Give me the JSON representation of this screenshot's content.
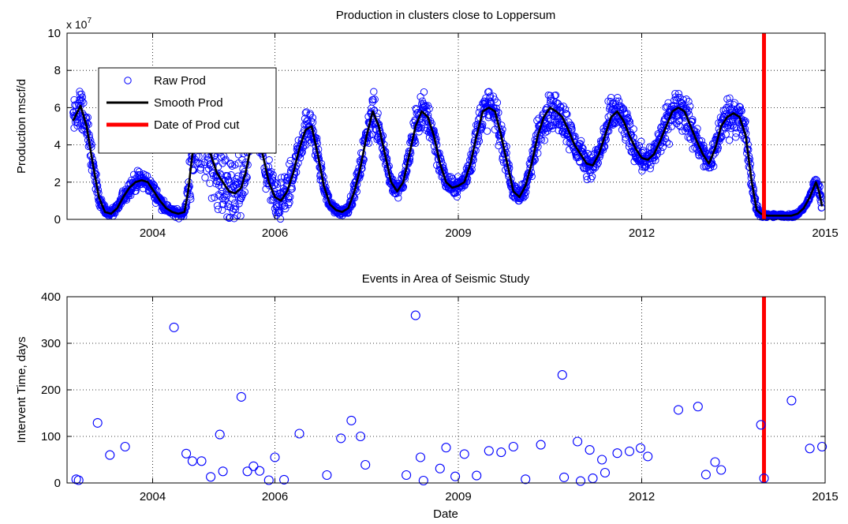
{
  "chart_data": [
    {
      "type": "scatter",
      "title": "Production in clusters close to Loppersum",
      "xlabel": "",
      "ylabel": "Production mscf/d",
      "y_exponent_label": "x 10",
      "y_exponent_power": "7",
      "x_ticks": [
        "2004",
        "2006",
        "2009",
        "2012",
        "2015"
      ],
      "x_tick_values": [
        2004.0,
        2006.0,
        2009.0,
        2012.0,
        2015.0
      ],
      "xlim": [
        2002.6,
        2015.0
      ],
      "y_ticks": [
        "0",
        "2",
        "4",
        "6",
        "8",
        "10"
      ],
      "ylim": [
        0,
        10
      ],
      "grid": true,
      "legend_position": "top-left",
      "legend": [
        {
          "label": "Raw Prod",
          "style": "marker",
          "color": "#0000ff"
        },
        {
          "label": "Smooth Prod",
          "style": "line",
          "color": "#000000"
        },
        {
          "label": "Date of Prod cut",
          "style": "line",
          "color": "#ff0000"
        }
      ],
      "series": [
        {
          "name": "Smooth Prod",
          "kind": "line",
          "color": "#000000",
          "x": [
            2002.7,
            2002.82,
            2002.92,
            2003.02,
            2003.12,
            2003.22,
            2003.32,
            2003.42,
            2003.52,
            2003.62,
            2003.72,
            2003.82,
            2003.92,
            2004.02,
            2004.12,
            2004.22,
            2004.32,
            2004.42,
            2004.52,
            2004.58,
            2004.65,
            2004.75,
            2004.85,
            2004.95,
            2005.05,
            2005.15,
            2005.25,
            2005.35,
            2005.45,
            2005.52,
            2005.6,
            2005.65,
            2005.7,
            2005.8,
            2005.9,
            2006.0,
            2006.1,
            2006.2,
            2006.3,
            2006.4,
            2006.5,
            2006.6,
            2006.7,
            2006.8,
            2006.9,
            2007.0,
            2007.1,
            2007.2,
            2007.3,
            2007.4,
            2007.5,
            2007.6,
            2007.7,
            2007.8,
            2007.9,
            2008.0,
            2008.1,
            2008.2,
            2008.3,
            2008.4,
            2008.5,
            2008.6,
            2008.7,
            2008.8,
            2008.9,
            2009.0,
            2009.1,
            2009.2,
            2009.3,
            2009.4,
            2009.5,
            2009.6,
            2009.7,
            2009.8,
            2009.9,
            2010.0,
            2010.1,
            2010.2,
            2010.3,
            2010.4,
            2010.5,
            2010.6,
            2010.7,
            2010.8,
            2010.9,
            2011.0,
            2011.1,
            2011.2,
            2011.3,
            2011.4,
            2011.5,
            2011.6,
            2011.7,
            2011.8,
            2011.9,
            2012.0,
            2012.1,
            2012.2,
            2012.3,
            2012.4,
            2012.5,
            2012.6,
            2012.7,
            2012.8,
            2012.9,
            2013.0,
            2013.1,
            2013.2,
            2013.3,
            2013.4,
            2013.5,
            2013.6,
            2013.7,
            2013.8,
            2013.88,
            2013.95,
            2014.05,
            2014.15,
            2014.25,
            2014.35,
            2014.45,
            2014.55,
            2014.65,
            2014.75,
            2014.85,
            2014.9,
            2014.95
          ],
          "y": [
            5.3,
            6.1,
            5.0,
            3.0,
            1.2,
            0.4,
            0.3,
            0.6,
            1.2,
            1.7,
            2.0,
            2.1,
            2.0,
            1.5,
            1.0,
            0.6,
            0.4,
            0.3,
            0.4,
            1.5,
            3.5,
            4.5,
            4.0,
            3.5,
            2.5,
            2.0,
            1.5,
            1.4,
            1.7,
            2.5,
            3.8,
            4.8,
            5.2,
            3.5,
            2.0,
            1.2,
            1.0,
            1.5,
            2.5,
            3.8,
            4.8,
            5.0,
            3.5,
            1.8,
            0.8,
            0.5,
            0.4,
            0.6,
            1.5,
            2.8,
            4.5,
            5.8,
            5.0,
            3.5,
            2.0,
            1.5,
            2.0,
            3.5,
            5.0,
            5.8,
            5.5,
            4.5,
            3.0,
            2.0,
            1.7,
            1.8,
            2.0,
            3.0,
            4.5,
            5.8,
            6.0,
            5.8,
            4.5,
            3.0,
            1.5,
            1.2,
            1.8,
            3.0,
            4.5,
            5.5,
            6.0,
            5.8,
            5.5,
            4.8,
            4.0,
            3.5,
            3.0,
            2.9,
            3.5,
            4.5,
            5.5,
            5.8,
            5.3,
            4.5,
            3.8,
            3.3,
            3.2,
            3.5,
            4.2,
            5.0,
            5.8,
            6.0,
            5.8,
            5.0,
            4.2,
            3.5,
            3.0,
            3.8,
            5.0,
            5.5,
            5.7,
            5.5,
            4.5,
            2.0,
            0.5,
            0.3,
            0.2,
            0.2,
            0.2,
            0.2,
            0.2,
            0.3,
            0.6,
            1.2,
            2.0,
            1.5,
            0.7
          ]
        },
        {
          "name": "Raw Prod",
          "kind": "scatter",
          "color": "#0000ff",
          "note": "dense daily scatter around the smoothed curve"
        },
        {
          "name": "Date of Prod cut",
          "kind": "vline",
          "color": "#ff0000",
          "x": 2014.0
        }
      ]
    },
    {
      "type": "scatter",
      "title": "Events in Area of Seismic Study",
      "xlabel": "Date",
      "ylabel": "Intervent Time, days",
      "x_ticks": [
        "2004",
        "2006",
        "2009",
        "2012",
        "2015"
      ],
      "x_tick_values": [
        2004.0,
        2006.0,
        2009.0,
        2012.0,
        2015.0
      ],
      "xlim": [
        2002.6,
        2015.0
      ],
      "y_ticks": [
        "0",
        "100",
        "200",
        "300",
        "400"
      ],
      "ylim": [
        0,
        400
      ],
      "grid": true,
      "series": [
        {
          "name": "Events",
          "kind": "scatter",
          "color": "#0000ff",
          "x": [
            2002.75,
            2002.79,
            2003.1,
            2003.3,
            2003.55,
            2004.35,
            2004.55,
            2004.65,
            2004.8,
            2004.95,
            2005.1,
            2005.15,
            2005.45,
            2005.55,
            2005.65,
            2005.75,
            2005.9,
            2006.0,
            2006.15,
            2006.4,
            2006.85,
            2007.08,
            2007.25,
            2007.4,
            2007.48,
            2008.15,
            2008.3,
            2008.38,
            2008.43,
            2008.7,
            2008.8,
            2008.95,
            2009.1,
            2009.3,
            2009.5,
            2009.7,
            2009.9,
            2010.1,
            2010.35,
            2010.7,
            2010.73,
            2010.95,
            2011.0,
            2011.15,
            2011.2,
            2011.35,
            2011.4,
            2011.6,
            2011.8,
            2011.98,
            2012.1,
            2012.6,
            2012.92,
            2013.05,
            2013.2,
            2013.3,
            2013.95,
            2014.0,
            2014.45,
            2014.75,
            2014.95
          ],
          "y": [
            8,
            6,
            129,
            60,
            78,
            334,
            63,
            47,
            47,
            13,
            104,
            25,
            185,
            25,
            36,
            26,
            6,
            55,
            7,
            106,
            17,
            96,
            134,
            100,
            39,
            17,
            360,
            55,
            5,
            31,
            76,
            14,
            62,
            16,
            69,
            66,
            78,
            8,
            82,
            232,
            12,
            89,
            4,
            71,
            10,
            50,
            22,
            64,
            68,
            75,
            57,
            157,
            164,
            18,
            45,
            28,
            125,
            10,
            177,
            74,
            78
          ]
        },
        {
          "name": "Date of Prod cut",
          "kind": "vline",
          "color": "#ff0000",
          "x": 2014.0
        }
      ]
    }
  ]
}
